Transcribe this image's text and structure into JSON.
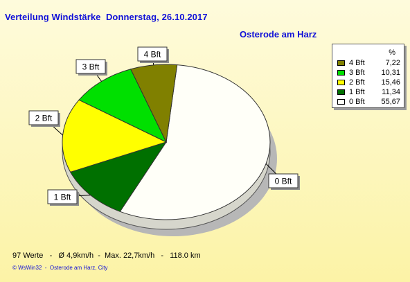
{
  "title": "Verteilung Windstärke  Donnerstag, 26.10.2017",
  "subtitle": "Osterode am Harz",
  "legend": {
    "unit": "%",
    "items": [
      {
        "label": "4 Bft",
        "value": "7,22",
        "color": "#808000"
      },
      {
        "label": "3 Bft",
        "value": "10,31",
        "color": "#00e000"
      },
      {
        "label": "2 Bft",
        "value": "15,46",
        "color": "#ffff00"
      },
      {
        "label": "1 Bft",
        "value": "11,34",
        "color": "#007000"
      },
      {
        "label": "0 Bft",
        "value": "55,67",
        "color": "#fffff8"
      }
    ]
  },
  "footer": {
    "stats": "97 Werte   -   Ø 4,9km/h  -  Max. 22,7km/h   -   118.0 km",
    "credit": "© WsWin32  -  Osterode am Harz, City"
  },
  "chart_data": {
    "type": "pie",
    "title": "Verteilung Windstärke  Donnerstag, 26.10.2017",
    "subtitle": "Osterode am Harz",
    "categories": [
      "0 Bft",
      "1 Bft",
      "2 Bft",
      "3 Bft",
      "4 Bft"
    ],
    "values": [
      55.67,
      11.34,
      15.46,
      10.31,
      7.22
    ],
    "unit": "%",
    "colors": [
      "#fffff8",
      "#007000",
      "#ffff00",
      "#00e000",
      "#808000"
    ],
    "legend_position": "top-right"
  }
}
